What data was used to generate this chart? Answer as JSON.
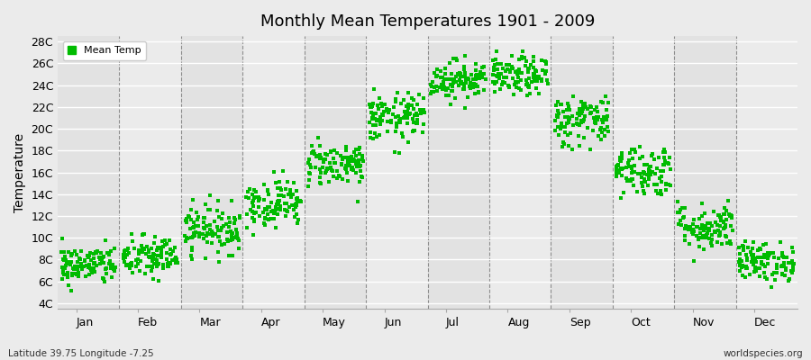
{
  "title": "Monthly Mean Temperatures 1901 - 2009",
  "ylabel": "Temperature",
  "xlabel_bottom": "Latitude 39.75 Longitude -7.25",
  "credit": "worldspecies.org",
  "dot_color": "#00bb00",
  "dot_size": 6,
  "background_color": "#ebebeb",
  "band_colors": [
    "#e2e2e2",
    "#ebebeb"
  ],
  "ytick_labels": [
    "4C",
    "6C",
    "8C",
    "10C",
    "12C",
    "14C",
    "16C",
    "18C",
    "20C",
    "22C",
    "24C",
    "26C",
    "28C"
  ],
  "ytick_values": [
    4,
    6,
    8,
    10,
    12,
    14,
    16,
    18,
    20,
    22,
    24,
    26,
    28
  ],
  "ylim": [
    3.5,
    28.5
  ],
  "months": [
    "Jan",
    "Feb",
    "Mar",
    "Apr",
    "May",
    "Jun",
    "Jul",
    "Aug",
    "Sep",
    "Oct",
    "Nov",
    "Dec"
  ],
  "num_years": 109,
  "mean_temps": [
    7.5,
    8.2,
    10.8,
    13.2,
    16.8,
    21.0,
    24.5,
    24.8,
    20.8,
    16.2,
    11.0,
    7.8
  ],
  "std_temps": [
    0.9,
    1.0,
    1.1,
    1.1,
    1.0,
    1.1,
    0.9,
    0.9,
    1.2,
    1.2,
    1.1,
    0.9
  ],
  "legend_label": "Mean Temp",
  "vline_color": "#777777",
  "grid_color": "#ffffff",
  "font_color": "#333333"
}
